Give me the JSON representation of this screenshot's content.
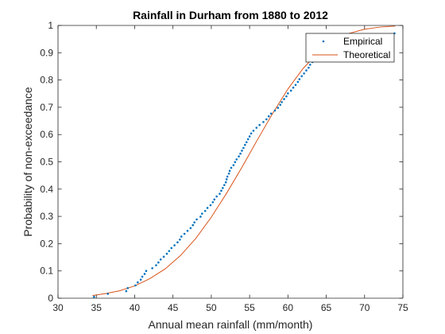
{
  "chart_data": {
    "type": "scatter",
    "title": "Rainfall in Durham from 1880 to 2012",
    "xlabel": "Annual mean rainfall (mm/month)",
    "ylabel": "Probability of non-exceedance",
    "xlim": [
      30,
      75
    ],
    "ylim": [
      0,
      1
    ],
    "xticks": [
      "30",
      "35",
      "40",
      "45",
      "50",
      "55",
      "60",
      "65",
      "70",
      "75"
    ],
    "yticks": [
      "0",
      "0.1",
      "0.2",
      "0.3",
      "0.4",
      "0.5",
      "0.6",
      "0.7",
      "0.8",
      "0.9",
      "1"
    ],
    "grid": false,
    "legend_position": "top-right",
    "series": [
      {
        "name": "Empirical",
        "style": "points",
        "color": "#0072BD",
        "x": [
          34.7,
          36.5,
          38.9,
          39.1,
          40.1,
          40.4,
          40.8,
          41.0,
          41.3,
          41.5,
          42.3,
          42.8,
          43.1,
          43.4,
          43.8,
          44.2,
          44.5,
          44.8,
          45.2,
          45.6,
          45.9,
          46.1,
          46.5,
          46.9,
          47.3,
          47.6,
          47.8,
          48.1,
          48.6,
          48.8,
          49.2,
          49.5,
          49.9,
          50.2,
          50.4,
          50.7,
          51.1,
          51.3,
          51.5,
          51.7,
          51.9,
          52.0,
          52.1,
          52.3,
          52.4,
          52.6,
          52.9,
          53.1,
          53.3,
          53.6,
          53.8,
          54.0,
          54.2,
          54.4,
          54.6,
          54.8,
          55.0,
          55.2,
          55.5,
          55.9,
          56.3,
          56.8,
          57.2,
          57.5,
          57.8,
          58.3,
          58.7,
          59.0,
          59.2,
          59.5,
          59.8,
          60.0,
          60.4,
          60.7,
          61.0,
          61.3,
          61.5,
          61.8,
          62.1,
          62.4,
          62.7,
          62.9,
          63.2,
          63.6,
          64.2,
          64.8,
          65.5,
          66.3,
          67.0,
          68.2,
          69.5,
          70.8,
          73.9
        ],
        "y": [
          0.005,
          0.016,
          0.026,
          0.037,
          0.047,
          0.058,
          0.068,
          0.079,
          0.089,
          0.1,
          0.11,
          0.121,
          0.131,
          0.142,
          0.152,
          0.163,
          0.173,
          0.184,
          0.194,
          0.205,
          0.215,
          0.226,
          0.236,
          0.247,
          0.257,
          0.268,
          0.278,
          0.289,
          0.299,
          0.31,
          0.32,
          0.331,
          0.341,
          0.352,
          0.362,
          0.373,
          0.383,
          0.394,
          0.404,
          0.415,
          0.425,
          0.436,
          0.446,
          0.457,
          0.467,
          0.478,
          0.488,
          0.499,
          0.509,
          0.52,
          0.53,
          0.541,
          0.551,
          0.562,
          0.572,
          0.583,
          0.593,
          0.604,
          0.614,
          0.625,
          0.635,
          0.646,
          0.656,
          0.667,
          0.677,
          0.688,
          0.698,
          0.709,
          0.719,
          0.73,
          0.74,
          0.751,
          0.761,
          0.772,
          0.782,
          0.793,
          0.803,
          0.814,
          0.824,
          0.835,
          0.845,
          0.856,
          0.866,
          0.877,
          0.887,
          0.898,
          0.908,
          0.919,
          0.929,
          0.94,
          0.95,
          0.961,
          0.971
        ]
      },
      {
        "name": "Theoretical",
        "style": "line",
        "color": "#D95319",
        "x": [
          34.5,
          36.0,
          38.0,
          40.0,
          42.0,
          44.0,
          46.0,
          48.0,
          50.0,
          52.0,
          54.0,
          55.0,
          56.0,
          58.0,
          60.0,
          62.0,
          64.0,
          66.0,
          68.0,
          70.0,
          72.0,
          74.0
        ],
        "y": [
          0.01,
          0.016,
          0.027,
          0.045,
          0.072,
          0.108,
          0.157,
          0.22,
          0.297,
          0.385,
          0.48,
          0.53,
          0.58,
          0.677,
          0.767,
          0.843,
          0.902,
          0.944,
          0.971,
          0.986,
          0.994,
          0.998
        ]
      }
    ]
  }
}
